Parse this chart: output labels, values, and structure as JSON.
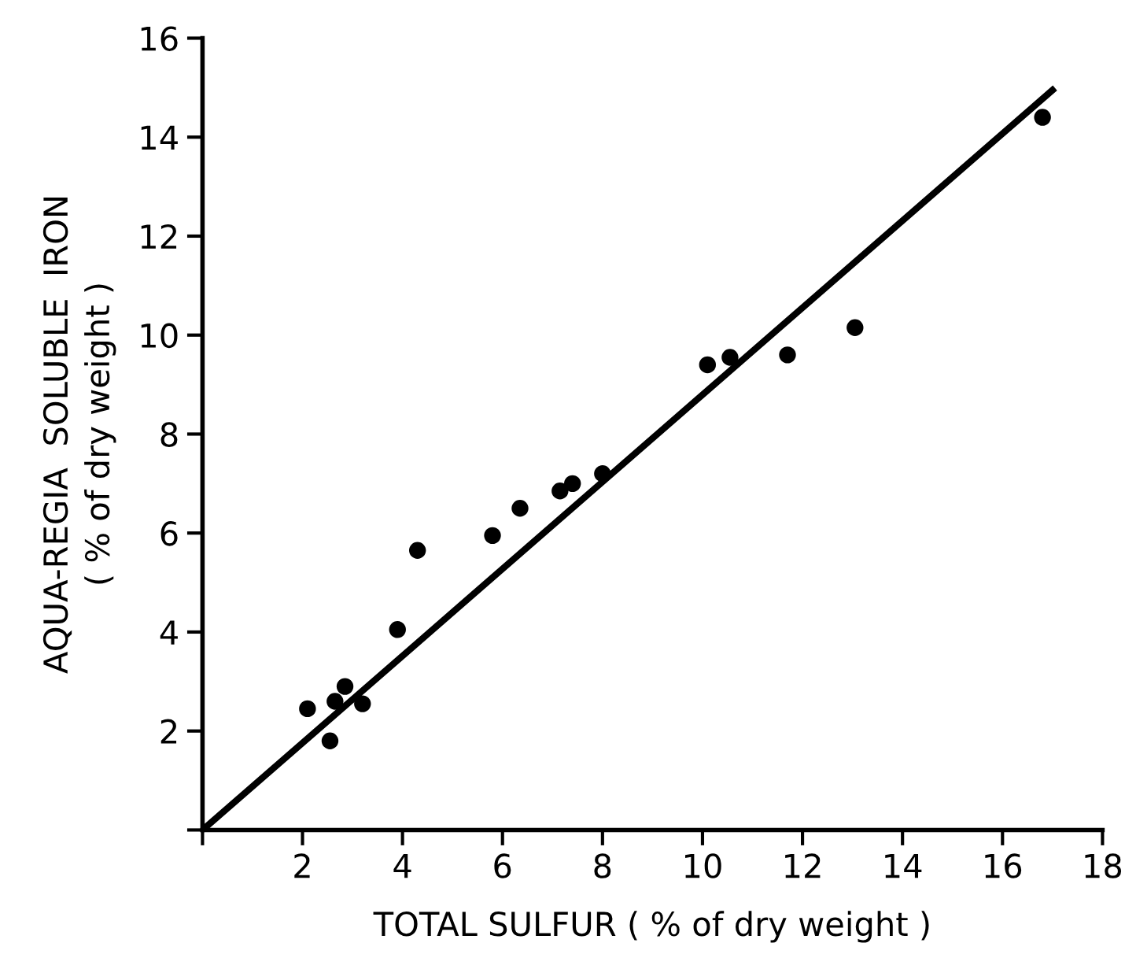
{
  "chart_data": {
    "type": "scatter",
    "xlabel": "TOTAL SULFUR ( % of dry weight )",
    "ylabel": "AQUA-REGIA  SOLUBLE  IRON\n( % of dry weight )",
    "xlim": [
      0,
      18
    ],
    "ylim": [
      0,
      16
    ],
    "xticks": [
      {
        "value": 0,
        "label": null
      },
      2,
      4,
      6,
      8,
      10,
      12,
      14,
      16,
      18
    ],
    "yticks": [
      {
        "value": 0,
        "label": null
      },
      2,
      4,
      6,
      8,
      10,
      12,
      14,
      16
    ],
    "grid": false,
    "series": [
      {
        "marker": "circle",
        "color": "#000000",
        "x": [
          2.1,
          2.55,
          2.65,
          2.85,
          3.2,
          3.9,
          4.3,
          5.8,
          6.35,
          7.15,
          7.4,
          8.0,
          10.1,
          10.55,
          11.7,
          13.05,
          16.8
        ],
        "values": [
          2.45,
          1.8,
          2.6,
          2.9,
          2.55,
          4.05,
          5.65,
          5.95,
          6.5,
          6.85,
          7.0,
          7.2,
          9.4,
          9.55,
          9.6,
          10.15,
          14.4
        ]
      },
      {
        "type": "line",
        "color": "#000000",
        "line_style": "solid",
        "x": [
          0,
          17
        ],
        "values": [
          0,
          14.95
        ]
      }
    ]
  }
}
